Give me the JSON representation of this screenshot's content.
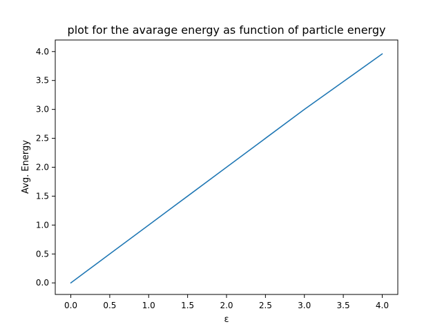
{
  "chart_data": {
    "type": "line",
    "title": "plot for the avarage energy as function of particle energy",
    "xlabel": "ε",
    "ylabel": "Avg. Energy",
    "xlim": [
      -0.2,
      4.2
    ],
    "ylim": [
      -0.2,
      4.2
    ],
    "x_ticks": [
      0.0,
      0.5,
      1.0,
      1.5,
      2.0,
      2.5,
      3.0,
      3.5,
      4.0
    ],
    "y_ticks": [
      0.0,
      0.5,
      1.0,
      1.5,
      2.0,
      2.5,
      3.0,
      3.5,
      4.0
    ],
    "x_tick_labels": [
      "0.0",
      "0.5",
      "1.0",
      "1.5",
      "2.0",
      "2.5",
      "3.0",
      "3.5",
      "4.0"
    ],
    "y_tick_labels": [
      "0.0",
      "0.5",
      "1.0",
      "1.5",
      "2.0",
      "2.5",
      "3.0",
      "3.5",
      "4.0"
    ],
    "grid": false,
    "series": [
      {
        "color": "#1f77b4",
        "x": [
          0.0,
          0.5,
          1.0,
          1.5,
          2.0,
          2.5,
          3.0,
          3.5,
          4.0
        ],
        "y": [
          0.0,
          0.5,
          1.0,
          1.5,
          2.0,
          2.5,
          3.0,
          3.48,
          3.96
        ]
      }
    ]
  }
}
